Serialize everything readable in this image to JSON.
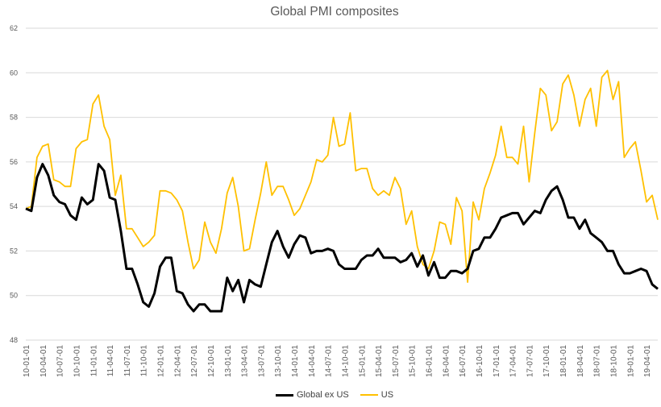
{
  "chart_data": {
    "type": "line",
    "title": "Global PMI composites",
    "xlabel": "",
    "ylabel": "",
    "ylim": [
      48,
      62
    ],
    "yticks": [
      48,
      50,
      52,
      54,
      56,
      58,
      60,
      62
    ],
    "grid": true,
    "legend": "bottom",
    "x_tick_labels": [
      "10-01-01",
      "10-04-01",
      "10-07-01",
      "10-10-01",
      "11-01-01",
      "11-04-01",
      "11-07-01",
      "11-10-01",
      "12-01-01",
      "12-04-01",
      "12-07-01",
      "12-10-01",
      "13-01-01",
      "13-04-01",
      "13-07-01",
      "13-10-01",
      "14-01-01",
      "14-04-01",
      "14-07-01",
      "14-10-01",
      "15-01-01",
      "15-04-01",
      "15-07-01",
      "15-10-01",
      "16-01-01",
      "16-04-01",
      "16-07-01",
      "16-10-01",
      "17-01-01",
      "17-04-01",
      "17-07-01",
      "17-10-01",
      "18-01-01",
      "18-04-01",
      "18-07-01",
      "18-10-01",
      "19-01-01",
      "19-04-01"
    ],
    "series": [
      {
        "name": "Global ex US",
        "color": "#000000",
        "values": [
          53.9,
          53.8,
          55.3,
          55.9,
          55.4,
          54.5,
          54.2,
          54.1,
          53.6,
          53.4,
          54.4,
          54.1,
          54.3,
          55.9,
          55.6,
          54.4,
          54.3,
          52.9,
          51.2,
          51.2,
          50.5,
          49.7,
          49.5,
          50.1,
          51.3,
          51.7,
          51.7,
          50.2,
          50.1,
          49.6,
          49.3,
          49.6,
          49.6,
          49.3,
          49.3,
          49.3,
          50.8,
          50.2,
          50.7,
          49.7,
          50.7,
          50.5,
          50.4,
          51.4,
          52.4,
          52.9,
          52.2,
          51.7,
          52.3,
          52.7,
          52.6,
          51.9,
          52.0,
          52.0,
          52.1,
          52.0,
          51.4,
          51.2,
          51.2,
          51.2,
          51.6,
          51.8,
          51.8,
          52.1,
          51.7,
          51.7,
          51.7,
          51.5,
          51.6,
          51.9,
          51.3,
          51.8,
          50.9,
          51.5,
          50.8,
          50.8,
          51.1,
          51.1,
          51.0,
          51.2,
          52.0,
          52.1,
          52.6,
          52.6,
          53.0,
          53.5,
          53.6,
          53.7,
          53.7,
          53.2,
          53.5,
          53.8,
          53.7,
          54.3,
          54.7,
          54.9,
          54.3,
          53.5,
          53.5,
          53.0,
          53.4,
          52.8,
          52.6,
          52.4,
          52.0,
          52.0,
          51.4,
          51.0,
          51.0,
          51.1,
          51.2,
          51.1,
          50.5,
          50.3
        ]
      },
      {
        "name": "US",
        "color": "#FFC000",
        "values": [
          53.9,
          54.0,
          56.2,
          56.7,
          56.8,
          55.2,
          55.1,
          54.9,
          54.9,
          56.6,
          56.9,
          57.0,
          58.6,
          59.0,
          57.6,
          57.0,
          54.5,
          55.4,
          53.0,
          53.0,
          52.6,
          52.2,
          52.4,
          52.7,
          54.7,
          54.7,
          54.6,
          54.3,
          53.8,
          52.4,
          51.2,
          51.6,
          53.3,
          52.4,
          51.9,
          53.0,
          54.6,
          55.3,
          54.0,
          52.0,
          52.1,
          53.4,
          54.6,
          56.0,
          54.5,
          54.9,
          54.9,
          54.3,
          53.6,
          53.9,
          54.5,
          55.1,
          56.1,
          56.0,
          56.3,
          58.0,
          56.7,
          56.8,
          58.2,
          55.6,
          55.7,
          55.7,
          54.8,
          54.5,
          54.7,
          54.5,
          55.3,
          54.8,
          53.2,
          53.8,
          52.2,
          51.4,
          51.2,
          52.0,
          53.3,
          53.2,
          52.3,
          54.4,
          53.8,
          50.6,
          54.2,
          53.4,
          54.8,
          55.5,
          56.3,
          57.6,
          56.2,
          56.2,
          55.9,
          57.6,
          55.1,
          57.3,
          59.3,
          59.0,
          57.4,
          57.8,
          59.5,
          59.9,
          59.0,
          57.6,
          58.8,
          59.3,
          57.6,
          59.8,
          60.1,
          58.8,
          59.6,
          56.2,
          56.6,
          56.9,
          55.6,
          54.2,
          54.5,
          53.4
        ]
      }
    ]
  }
}
